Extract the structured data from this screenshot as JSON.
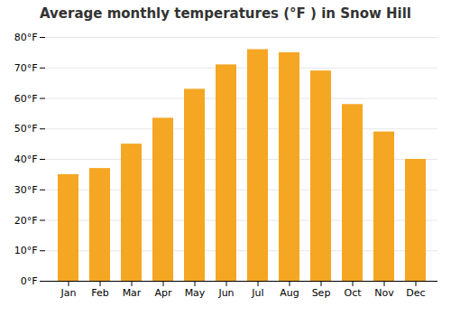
{
  "chart_data": {
    "type": "bar",
    "title": "Average monthly temperatures (°F ) in Snow Hill",
    "categories": [
      "Jan",
      "Feb",
      "Mar",
      "Apr",
      "May",
      "Jun",
      "Jul",
      "Aug",
      "Sep",
      "Oct",
      "Nov",
      "Dec"
    ],
    "values": [
      35,
      37,
      45,
      53.5,
      63,
      71,
      76,
      75,
      69,
      58,
      49,
      40
    ],
    "color": "#F5A623",
    "ylim": [
      0,
      80
    ],
    "yticks": [
      {
        "value": 0,
        "label": "0°F"
      },
      {
        "value": 10,
        "label": "10°F"
      },
      {
        "value": 20,
        "label": "20°F"
      },
      {
        "value": 30,
        "label": "30°F"
      },
      {
        "value": 40,
        "label": "40°F"
      },
      {
        "value": 50,
        "label": "50°F"
      },
      {
        "value": 60,
        "label": "60°F"
      },
      {
        "value": 70,
        "label": "70°F"
      },
      {
        "value": 80,
        "label": "80°F"
      }
    ],
    "grid": true
  }
}
